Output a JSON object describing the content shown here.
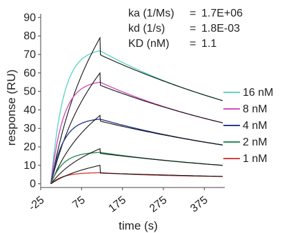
{
  "chart_data": {
    "type": "line",
    "title": "",
    "xlabel": "time (s)",
    "ylabel": "response (RU)",
    "xlim": [
      -25,
      425
    ],
    "ylim": [
      -2,
      92
    ],
    "xticks": [
      -25,
      75,
      175,
      275,
      375
    ],
    "yticks": [
      0,
      10,
      20,
      30,
      40,
      50,
      60,
      70,
      80,
      90
    ],
    "grid": false,
    "legend_position": "right",
    "kinetics": [
      {
        "label": "ka (1/Ms)",
        "eq": "=",
        "value": "1.7E+06"
      },
      {
        "label": "kd (1/s)",
        "eq": "=",
        "value": "1.8E-03"
      },
      {
        "label": "KD (nM)",
        "eq": "=",
        "value": "1.1"
      }
    ],
    "association_start": 0,
    "dissociation_start": 120,
    "end_time": 420,
    "series": [
      {
        "name": "16 nM",
        "color": "#5fd6c8",
        "peak": 79,
        "plateau_fit": 72,
        "end": 45
      },
      {
        "name": "8 nM",
        "color": "#d24fb8",
        "peak": 60,
        "plateau_fit": 55,
        "end": 33
      },
      {
        "name": "4 nM",
        "color": "#283c8c",
        "peak": 37,
        "plateau_fit": 35,
        "end": 21
      },
      {
        "name": "2 nM",
        "color": "#2e8b57",
        "peak": 19,
        "plateau_fit": 17,
        "end": 10
      },
      {
        "name": "1 nM",
        "color": "#d84040",
        "peak": 10,
        "plateau_fit": 6,
        "end": 4
      }
    ]
  }
}
